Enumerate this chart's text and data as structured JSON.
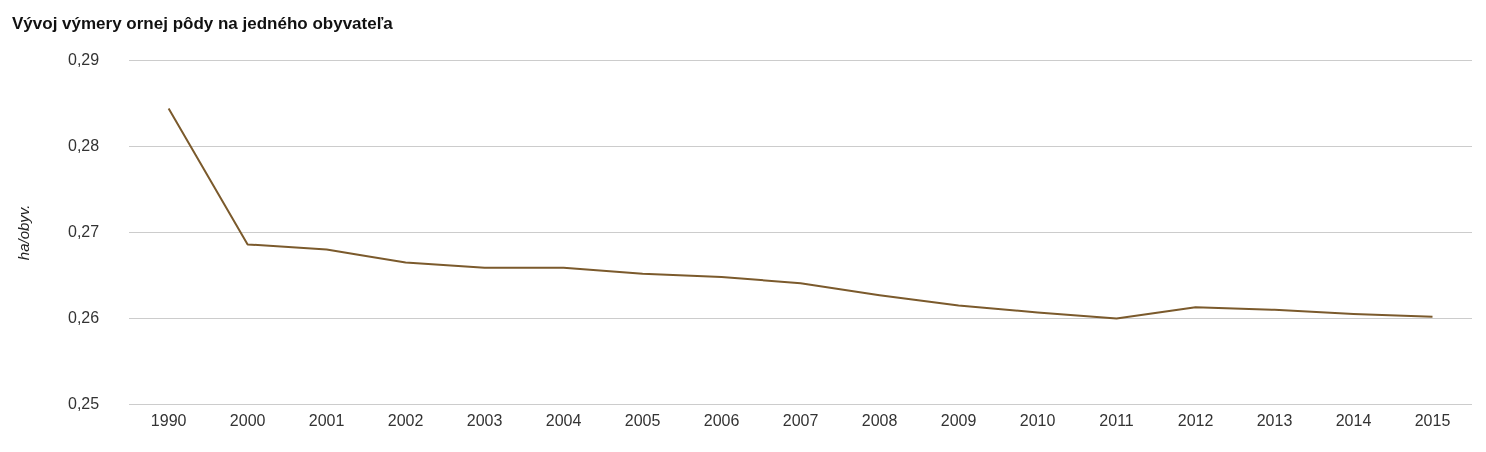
{
  "chart_data": {
    "type": "line",
    "title": "Vývoj výmery ornej pôdy na jedného obyvateľa",
    "ylabel": "ha/obyv.",
    "categories": [
      "1990",
      "2000",
      "2001",
      "2002",
      "2003",
      "2004",
      "2005",
      "2006",
      "2007",
      "2008",
      "2009",
      "2010",
      "2011",
      "2012",
      "2013",
      "2014",
      "2015"
    ],
    "series": [
      {
        "color": "#7b5a2c",
        "values": [
          0.2844,
          0.2686,
          0.268,
          0.2665,
          0.2659,
          0.2659,
          0.2652,
          0.2648,
          0.2641,
          0.2627,
          0.2615,
          0.2607,
          0.26,
          0.2613,
          0.261,
          0.2605,
          0.2602
        ]
      }
    ],
    "ylim": [
      0.25,
      0.29
    ],
    "yticks": [
      {
        "value": 0.25,
        "label": "0,25"
      },
      {
        "value": 0.26,
        "label": "0,26"
      },
      {
        "value": 0.27,
        "label": "0,27"
      },
      {
        "value": 0.28,
        "label": "0,28"
      },
      {
        "value": 0.29,
        "label": "0,29"
      }
    ],
    "grid": "y",
    "legend": false,
    "marker": "none",
    "line_style": "solid"
  }
}
